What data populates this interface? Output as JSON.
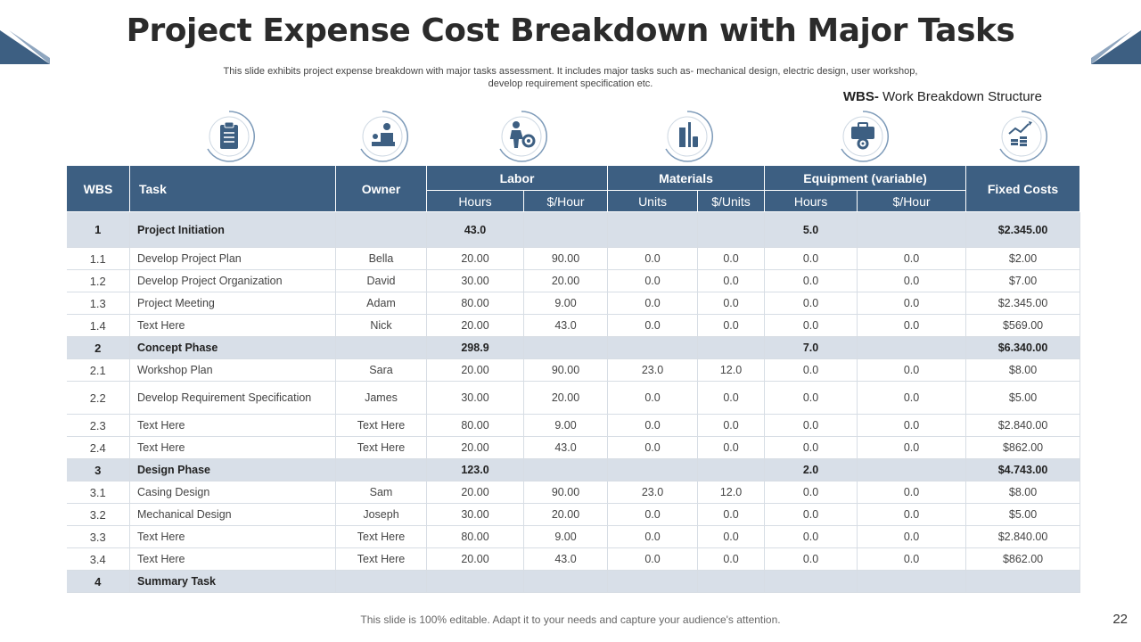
{
  "title": "Project Expense Cost Breakdown with Major Tasks",
  "subtitle": "This slide exhibits project expense breakdown with major tasks assessment. It includes major tasks such as- mechanical design, electric design, user workshop, develop requirement specification etc.",
  "legend": {
    "abbr": "WBS-",
    "text": " Work Breakdown Structure"
  },
  "icons": [
    "clipboard-icon",
    "presenter-icon",
    "worker-gear-icon",
    "tools-icon",
    "toolbox-gear-icon",
    "growth-coins-icon"
  ],
  "colors": {
    "header": "#3d5f82",
    "phase_row": "#d8dfe8",
    "accent": "#4a6a8c"
  },
  "headers": {
    "wbs": "WBS",
    "task": "Task",
    "owner": "Owner",
    "labor": "Labor",
    "materials": "Materials",
    "equipment": "Equipment (variable)",
    "fixed": "Fixed Costs",
    "labor_hours": "Hours",
    "labor_rate": "$/Hour",
    "mat_units": "Units",
    "mat_rate": "$/Units",
    "eq_hours": "Hours",
    "eq_rate": "$/Hour"
  },
  "rows": [
    {
      "wbs": "1",
      "task": "Project Initiation",
      "owner": "",
      "lh": "43.0",
      "lr": "",
      "mu": "",
      "mr": "",
      "eh": "5.0",
      "er": "",
      "fixed": "$2.345.00",
      "phase": true
    },
    {
      "wbs": "1.1",
      "task": "Develop  Project Plan",
      "owner": "Bella",
      "lh": "20.00",
      "lr": "90.00",
      "mu": "0.0",
      "mr": "0.0",
      "eh": "0.0",
      "er": "0.0",
      "fixed": "$2.00"
    },
    {
      "wbs": "1.2",
      "task": "Develop  Project Organization",
      "owner": "David",
      "lh": "30.00",
      "lr": "20.00",
      "mu": "0.0",
      "mr": "0.0",
      "eh": "0.0",
      "er": "0.0",
      "fixed": "$7.00"
    },
    {
      "wbs": "1.3",
      "task": "Project Meeting",
      "owner": "Adam",
      "lh": "80.00",
      "lr": "9.00",
      "mu": "0.0",
      "mr": "0.0",
      "eh": "0.0",
      "er": "0.0",
      "fixed": "$2.345.00"
    },
    {
      "wbs": "1.4",
      "task": "Text Here",
      "owner": "Nick",
      "lh": "20.00",
      "lr": "43.0",
      "mu": "0.0",
      "mr": "0.0",
      "eh": "0.0",
      "er": "0.0",
      "fixed": "$569.00"
    },
    {
      "wbs": "2",
      "task": "Concept Phase",
      "owner": "",
      "lh": "298.9",
      "lr": "",
      "mu": "",
      "mr": "",
      "eh": "7.0",
      "er": "",
      "fixed": "$6.340.00",
      "phase": true
    },
    {
      "wbs": "2.1",
      "task": "Workshop Plan",
      "owner": "Sara",
      "lh": "20.00",
      "lr": "90.00",
      "mu": "23.0",
      "mr": "12.0",
      "eh": "0.0",
      "er": "0.0",
      "fixed": "$8.00"
    },
    {
      "wbs": "2.2",
      "task": "Develop  Requirement  Specification",
      "owner": "James",
      "lh": "30.00",
      "lr": "20.00",
      "mu": "0.0",
      "mr": "0.0",
      "eh": "0.0",
      "er": "0.0",
      "fixed": "$5.00",
      "tall": true
    },
    {
      "wbs": "2.3",
      "task": "Text Here",
      "owner": "Text Here",
      "lh": "80.00",
      "lr": "9.00",
      "mu": "0.0",
      "mr": "0.0",
      "eh": "0.0",
      "er": "0.0",
      "fixed": "$2.840.00"
    },
    {
      "wbs": "2.4",
      "task": "Text Here",
      "owner": "Text Here",
      "lh": "20.00",
      "lr": "43.0",
      "mu": "0.0",
      "mr": "0.0",
      "eh": "0.0",
      "er": "0.0",
      "fixed": "$862.00"
    },
    {
      "wbs": "3",
      "task": "Design Phase",
      "owner": "",
      "lh": "123.0",
      "lr": "",
      "mu": "",
      "mr": "",
      "eh": "2.0",
      "er": "",
      "fixed": "$4.743.00",
      "phase": true
    },
    {
      "wbs": "3.1",
      "task": "Casing Design",
      "owner": "Sam",
      "lh": "20.00",
      "lr": "90.00",
      "mu": "23.0",
      "mr": "12.0",
      "eh": "0.0",
      "er": "0.0",
      "fixed": "$8.00"
    },
    {
      "wbs": "3.2",
      "task": "Mechanical Design",
      "owner": "Joseph",
      "lh": "30.00",
      "lr": "20.00",
      "mu": "0.0",
      "mr": "0.0",
      "eh": "0.0",
      "er": "0.0",
      "fixed": "$5.00"
    },
    {
      "wbs": "3.3",
      "task": "Text Here",
      "owner": "Text Here",
      "lh": "80.00",
      "lr": "9.00",
      "mu": "0.0",
      "mr": "0.0",
      "eh": "0.0",
      "er": "0.0",
      "fixed": "$2.840.00"
    },
    {
      "wbs": "3.4",
      "task": "Text Here",
      "owner": "Text Here",
      "lh": "20.00",
      "lr": "43.0",
      "mu": "0.0",
      "mr": "0.0",
      "eh": "0.0",
      "er": "0.0",
      "fixed": "$862.00"
    },
    {
      "wbs": "4",
      "task": "Summary Task",
      "owner": "",
      "lh": "",
      "lr": "",
      "mu": "",
      "mr": "",
      "eh": "",
      "er": "",
      "fixed": "",
      "phase": true
    }
  ],
  "footer": "This slide is 100% editable. Adapt it to your needs and capture your audience's attention.",
  "page_number": "22"
}
